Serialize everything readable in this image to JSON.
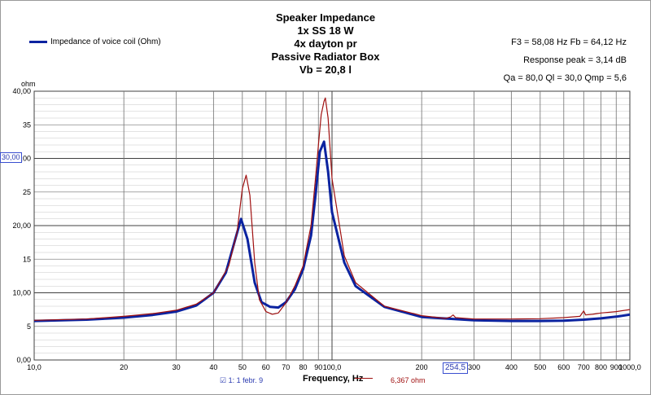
{
  "title_lines": [
    "Speaker Impedance",
    "1x SS 18 W",
    "4x dayton pr",
    "Passive Radiator Box",
    "Vb = 20,8 l"
  ],
  "info": {
    "line1": "F3 = 58,08 Hz  Fb = 64,12 Hz",
    "line2": "Response  peak = 3,14 dB",
    "line3": "Qa = 80,0  Ql = 30,0  Qmp = 5,6"
  },
  "legend_label": "Impedance of voice coil (Ohm)",
  "footer": {
    "left": "☑ 1: 1 febr. 9",
    "right": "6,367 ohm",
    "cursor": "254,5",
    "y_readout": "30,00"
  },
  "colors": {
    "simulated": "#0b23a0",
    "measured": "#a01010",
    "grid": "#c8c8c8",
    "major_grid": "#404040"
  },
  "chart_data": {
    "type": "line",
    "title": "Speaker Impedance",
    "xlabel": "Frequency, Hz",
    "ylabel": "ohm",
    "xscale": "log",
    "xlim": [
      10,
      1000
    ],
    "ylim": [
      0,
      40
    ],
    "y_ticks": [
      "0,00",
      "5",
      "10,00",
      "15",
      "20,00",
      "25",
      "30,00",
      "35",
      "40,00"
    ],
    "x_ticks": [
      "10,0",
      "20",
      "30",
      "40",
      "50",
      "60",
      "70",
      "80",
      "90",
      "100,0",
      "200",
      "300",
      "400",
      "500",
      "600",
      "700",
      "800",
      "900",
      "1000,0"
    ],
    "grid": true,
    "legend_position": "top-left",
    "series": [
      {
        "name": "Impedance of voice coil (Ohm)",
        "color": "#0b23a0",
        "x": [
          10,
          15,
          20,
          25,
          30,
          35,
          40,
          44,
          47,
          49.5,
          52,
          55,
          58,
          62,
          66,
          70,
          75,
          80,
          85,
          88,
          91,
          94,
          97,
          100,
          110,
          120,
          150,
          200,
          300,
          400,
          500,
          600,
          700,
          800,
          900,
          1000
        ],
        "y": [
          5.8,
          6.0,
          6.3,
          6.7,
          7.2,
          8.1,
          10.0,
          13.0,
          17.5,
          21.0,
          18.0,
          11.5,
          8.6,
          7.9,
          7.8,
          8.6,
          10.5,
          13.5,
          18.5,
          24.5,
          31.0,
          32.5,
          28.0,
          22.0,
          14.5,
          11.0,
          7.9,
          6.4,
          5.9,
          5.8,
          5.8,
          5.85,
          6.0,
          6.2,
          6.45,
          6.75
        ]
      },
      {
        "name": "",
        "color": "#a01010",
        "x": [
          10,
          15,
          20,
          25,
          30,
          35,
          40,
          45,
          48,
          50,
          51.5,
          53,
          55,
          57,
          60,
          63,
          66,
          70,
          75,
          80,
          85,
          88,
          90,
          92,
          94,
          95,
          97,
          100,
          110,
          120,
          150,
          200,
          240,
          250,
          255,
          260,
          300,
          400,
          500,
          600,
          680,
          700,
          710,
          750,
          800,
          900,
          1000
        ],
        "y": [
          5.9,
          6.1,
          6.5,
          6.9,
          7.4,
          8.3,
          10.0,
          14.0,
          19.0,
          25.5,
          27.5,
          24.5,
          14.5,
          9.0,
          7.2,
          6.8,
          7.0,
          8.5,
          11.0,
          14.0,
          20.0,
          27.0,
          32.0,
          36.5,
          38.5,
          39.0,
          36.0,
          27.0,
          15.5,
          11.5,
          8.0,
          6.6,
          6.2,
          6.4,
          6.7,
          6.3,
          6.1,
          6.1,
          6.15,
          6.3,
          6.5,
          7.3,
          6.7,
          6.8,
          7.0,
          7.2,
          7.5
        ]
      }
    ]
  }
}
